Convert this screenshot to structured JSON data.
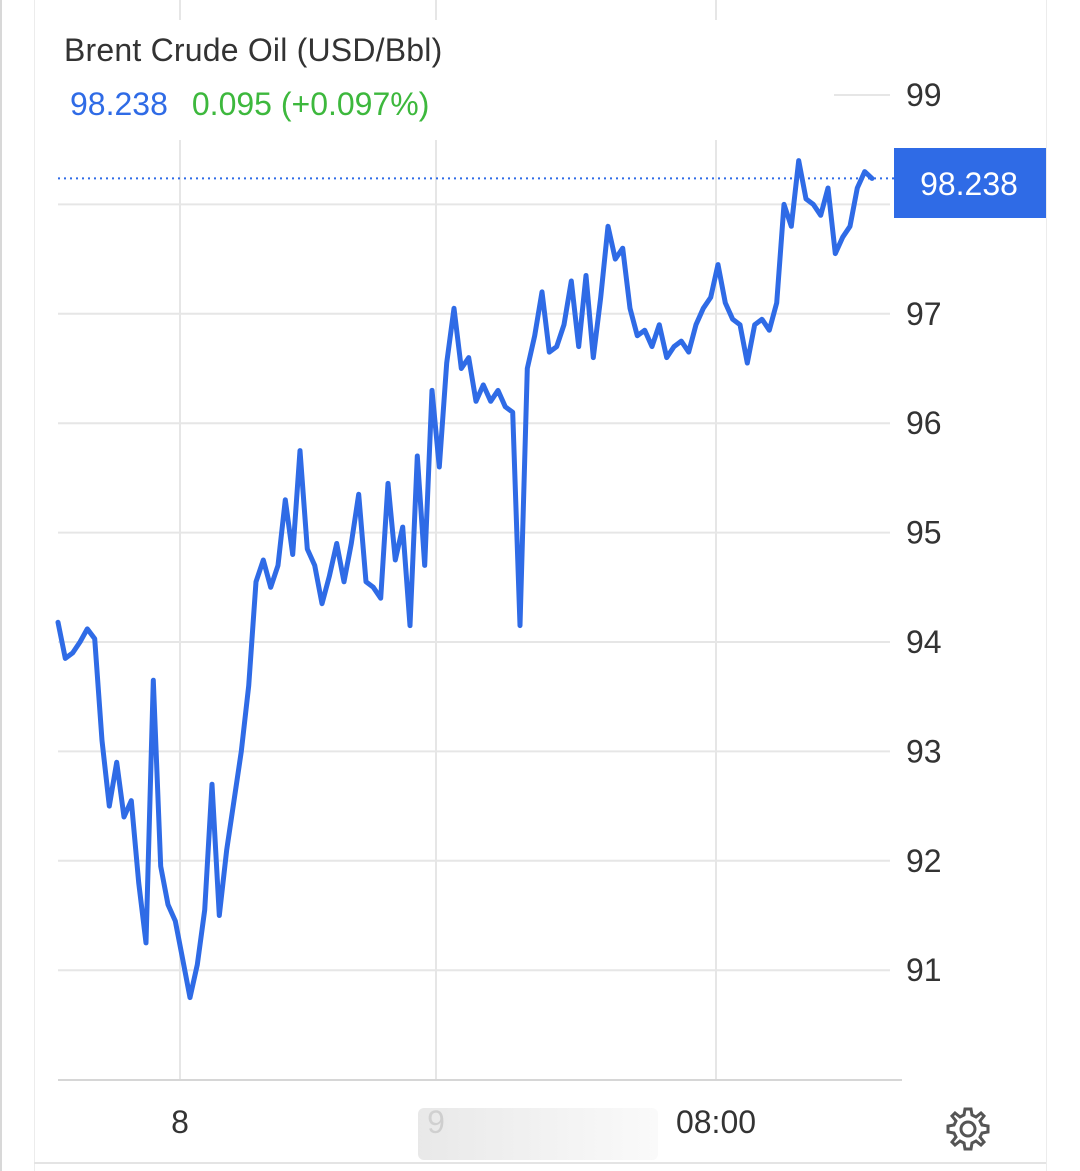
{
  "header": {
    "title": "Brent Crude Oil (USD/Bbl)",
    "price": "98.238",
    "change": "0.095 (+0.097%)"
  },
  "colors": {
    "line": "#2f6be6",
    "positive": "#3db83d",
    "grid": "#e6e6e6",
    "badge": "#2f6be6"
  },
  "icons": {
    "settings": "gear-icon"
  },
  "chart_data": {
    "type": "line",
    "title": "Brent Crude Oil (USD/Bbl)",
    "xlabel": "",
    "ylabel": "",
    "x_ticks": [
      "8",
      "9",
      "08:00"
    ],
    "y_ticks": [
      91,
      92,
      93,
      94,
      95,
      96,
      97,
      99
    ],
    "ylim": [
      90.0,
      99.3
    ],
    "grid": true,
    "last_value": 98.238,
    "last_value_label": "98.238",
    "series": [
      {
        "values": [
          94.18,
          93.85,
          93.9,
          94.0,
          94.12,
          94.03,
          93.1,
          92.5,
          92.9,
          92.4,
          92.55,
          91.8,
          91.25,
          93.65,
          91.95,
          91.6,
          91.45,
          91.1,
          90.75,
          91.05,
          91.55,
          92.7,
          91.5,
          92.1,
          92.55,
          93.0,
          93.6,
          94.55,
          94.75,
          94.5,
          94.7,
          95.3,
          94.8,
          95.75,
          94.85,
          94.7,
          94.35,
          94.6,
          94.9,
          94.55,
          94.9,
          95.35,
          94.55,
          94.5,
          94.4,
          95.45,
          94.75,
          95.05,
          94.15,
          95.7,
          94.7,
          96.3,
          95.6,
          96.55,
          97.05,
          96.5,
          96.6,
          96.2,
          96.35,
          96.2,
          96.3,
          96.15,
          96.1,
          94.15,
          96.5,
          96.8,
          97.2,
          96.65,
          96.7,
          96.9,
          97.3,
          96.7,
          97.35,
          96.6,
          97.15,
          97.8,
          97.5,
          97.6,
          97.05,
          96.8,
          96.85,
          96.7,
          96.9,
          96.6,
          96.7,
          96.75,
          96.65,
          96.9,
          97.05,
          97.15,
          97.45,
          97.1,
          96.95,
          96.9,
          96.55,
          96.9,
          96.95,
          96.85,
          97.1,
          98.0,
          97.8,
          98.4,
          98.05,
          98.0,
          97.9,
          98.15,
          97.55,
          97.7,
          97.8,
          98.15,
          98.3,
          98.238
        ]
      }
    ]
  }
}
